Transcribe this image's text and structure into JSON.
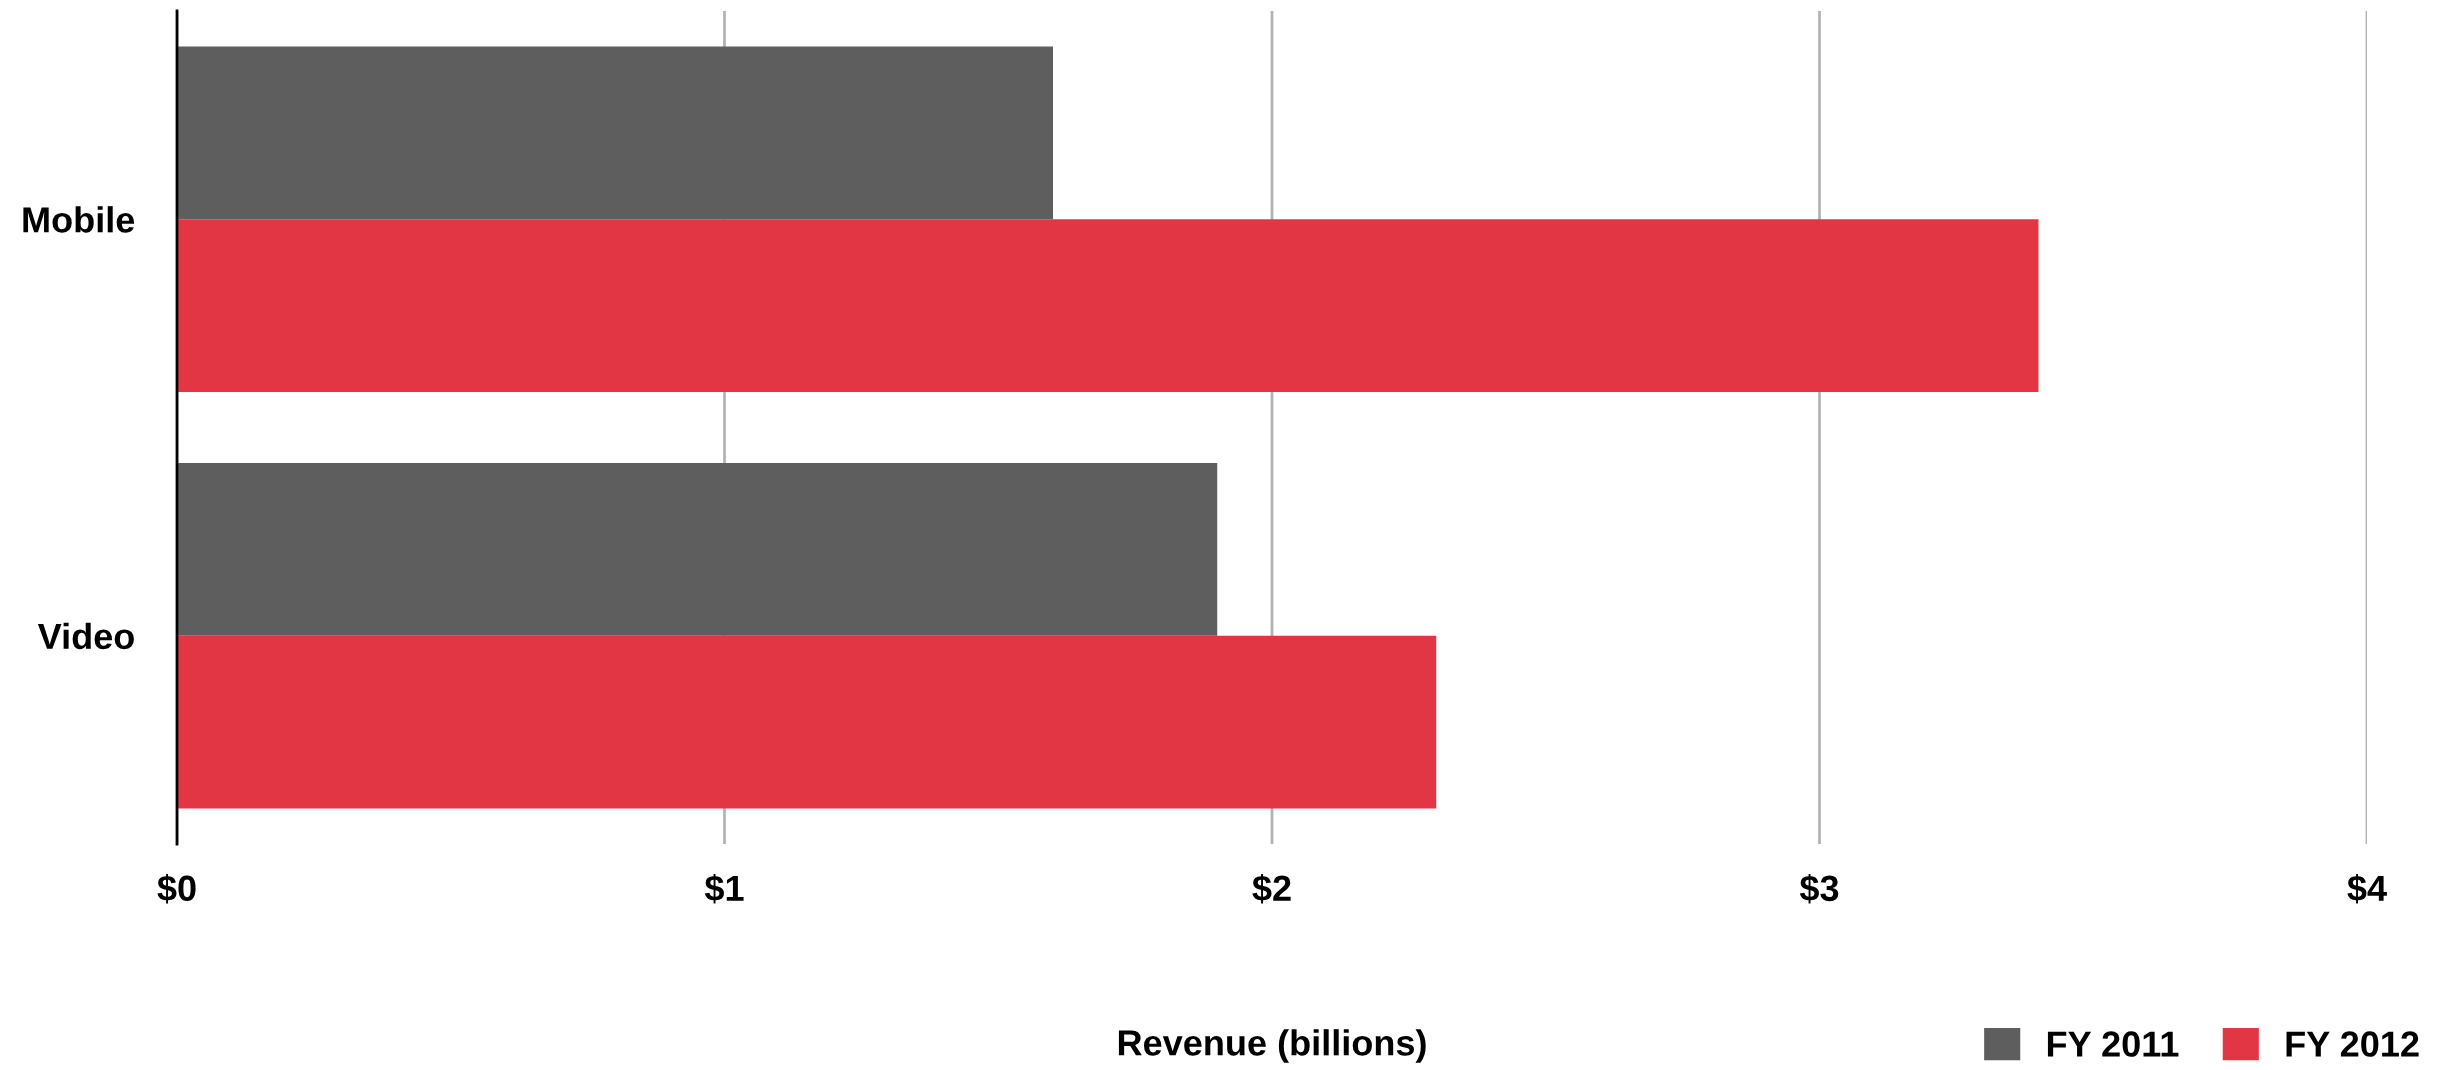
{
  "chart_data": {
    "type": "bar",
    "orientation": "horizontal",
    "categories": [
      "Mobile",
      "Video"
    ],
    "series": [
      {
        "name": "FY 2011",
        "color": "#5e5e5e",
        "values": [
          1.6,
          1.9
        ]
      },
      {
        "name": "FY 2012",
        "color": "#e33645",
        "values": [
          3.4,
          2.3
        ]
      }
    ],
    "xlabel": "Revenue (billions)",
    "xlim": [
      0,
      4
    ],
    "xticks": [
      {
        "value": 0,
        "label": "$0"
      },
      {
        "value": 1,
        "label": "$1"
      },
      {
        "value": 2,
        "label": "$2"
      },
      {
        "value": 3,
        "label": "$3"
      },
      {
        "value": 4,
        "label": "$4"
      }
    ],
    "grid": "x",
    "legend": "bottom right"
  }
}
